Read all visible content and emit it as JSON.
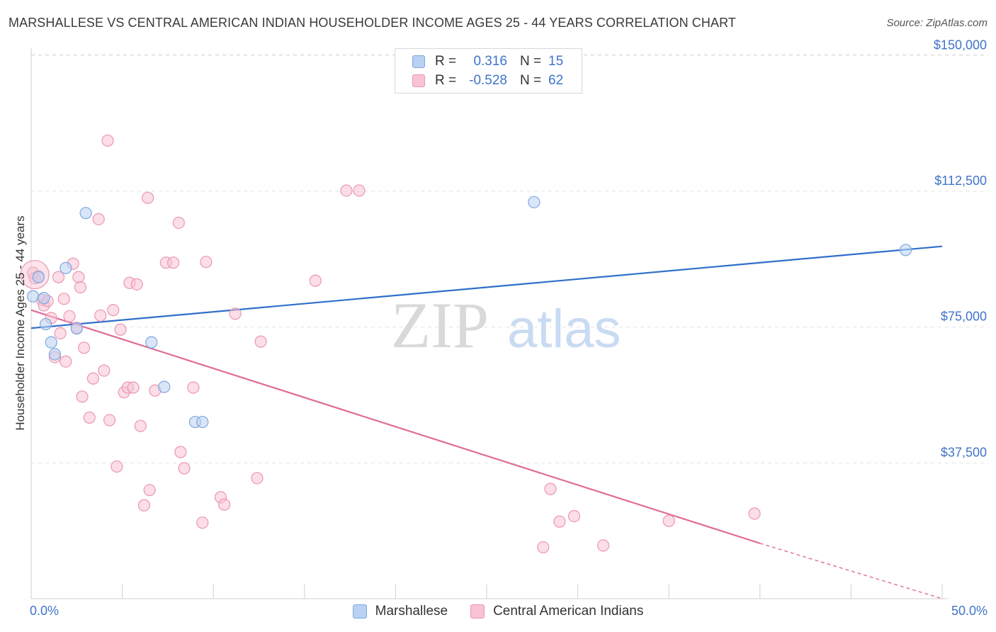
{
  "title": "MARSHALLESE VS CENTRAL AMERICAN INDIAN HOUSEHOLDER INCOME AGES 25 - 44 YEARS CORRELATION CHART",
  "source": "Source: ZipAtlas.com",
  "watermark": {
    "zip": "ZIP",
    "atlas": "atlas"
  },
  "legend": {
    "rows": [
      {
        "r_label": "R =",
        "r_value": "0.316",
        "n_label": "N =",
        "n_value": "15"
      },
      {
        "r_label": "R =",
        "r_value": "-0.528",
        "n_label": "N =",
        "n_value": "62"
      }
    ]
  },
  "colors": {
    "blue_fill": "#b9d1f3",
    "blue_stroke": "#7ea8e0",
    "blue_line": "#2f6fca",
    "pink_fill": "#f8c3d3",
    "pink_stroke": "#eb97b2",
    "pink_line": "#e06c98",
    "axis_text": "#3f74c9",
    "grid": "#e3e3e3"
  },
  "chart_data": {
    "type": "scatter",
    "title": "MARSHALLESE VS CENTRAL AMERICAN INDIAN HOUSEHOLDER INCOME AGES 25 - 44 YEARS CORRELATION CHART",
    "xlabel": "",
    "ylabel": "Householder Income Ages 25 - 44 years",
    "xlim": [
      0,
      50
    ],
    "ylim": [
      0,
      157500
    ],
    "x_tick_labels": [
      "0.0%",
      "50.0%"
    ],
    "y_ticks": [
      37500,
      75000,
      112500,
      150000
    ],
    "y_tick_labels": [
      "$37,500",
      "$75,000",
      "$112,500",
      "$150,000"
    ],
    "grid": "horizontal dashed",
    "legend_placement": "bottom-center",
    "series": [
      {
        "name": "Marshallese",
        "color": "#b9d1f3",
        "points": [
          [
            0.1,
            83500
          ],
          [
            0.4,
            88800
          ],
          [
            0.7,
            83000
          ],
          [
            0.8,
            75800
          ],
          [
            1.1,
            70800
          ],
          [
            1.3,
            67500
          ],
          [
            1.9,
            91300
          ],
          [
            2.5,
            74600
          ],
          [
            3.0,
            106500
          ],
          [
            6.6,
            70800
          ],
          [
            7.3,
            58500
          ],
          [
            9.0,
            48800
          ],
          [
            9.4,
            48800
          ],
          [
            27.6,
            109500
          ],
          [
            48.0,
            96300
          ]
        ],
        "trend": {
          "x": [
            0,
            50
          ],
          "y": [
            74700,
            97300
          ]
        }
      },
      {
        "name": "Central American Indians",
        "color": "#f8c3d3",
        "points": [
          [
            0.1,
            90000
          ],
          [
            0.2,
            88500
          ],
          [
            0.4,
            89000
          ],
          [
            0.6,
            82500
          ],
          [
            0.7,
            81000
          ],
          [
            0.9,
            82200
          ],
          [
            1.1,
            77500
          ],
          [
            1.3,
            66700
          ],
          [
            1.5,
            88800
          ],
          [
            1.6,
            73300
          ],
          [
            1.8,
            82800
          ],
          [
            1.9,
            65500
          ],
          [
            2.1,
            78000
          ],
          [
            2.3,
            92500
          ],
          [
            2.5,
            74800
          ],
          [
            2.6,
            88800
          ],
          [
            2.7,
            86000
          ],
          [
            2.8,
            55800
          ],
          [
            2.9,
            69300
          ],
          [
            3.2,
            50000
          ],
          [
            3.4,
            60800
          ],
          [
            3.7,
            104800
          ],
          [
            3.8,
            78200
          ],
          [
            4.0,
            63000
          ],
          [
            4.2,
            126500
          ],
          [
            4.3,
            49300
          ],
          [
            4.5,
            79700
          ],
          [
            4.7,
            36500
          ],
          [
            4.9,
            74300
          ],
          [
            5.1,
            57000
          ],
          [
            5.3,
            58300
          ],
          [
            5.4,
            87200
          ],
          [
            5.6,
            58300
          ],
          [
            5.8,
            86800
          ],
          [
            6.0,
            47700
          ],
          [
            6.2,
            25800
          ],
          [
            6.4,
            110700
          ],
          [
            6.5,
            30000
          ],
          [
            6.8,
            57500
          ],
          [
            7.4,
            92800
          ],
          [
            7.8,
            92800
          ],
          [
            8.1,
            103800
          ],
          [
            8.2,
            40500
          ],
          [
            8.4,
            36000
          ],
          [
            8.9,
            58300
          ],
          [
            9.4,
            21000
          ],
          [
            9.6,
            93000
          ],
          [
            10.4,
            28000
          ],
          [
            10.6,
            26000
          ],
          [
            11.2,
            78700
          ],
          [
            12.4,
            33300
          ],
          [
            12.6,
            71000
          ],
          [
            15.6,
            87800
          ],
          [
            17.3,
            112700
          ],
          [
            18.0,
            112700
          ],
          [
            28.1,
            14200
          ],
          [
            28.5,
            30300
          ],
          [
            29.0,
            21300
          ],
          [
            29.8,
            22800
          ],
          [
            31.4,
            14700
          ],
          [
            35.0,
            21500
          ],
          [
            39.7,
            23500
          ]
        ],
        "trend": {
          "x": [
            0,
            40
          ],
          "y": [
            79700,
            15300
          ]
        },
        "trend_extension": {
          "x": [
            40,
            50
          ],
          "y": [
            15300,
            0
          ]
        }
      }
    ]
  }
}
